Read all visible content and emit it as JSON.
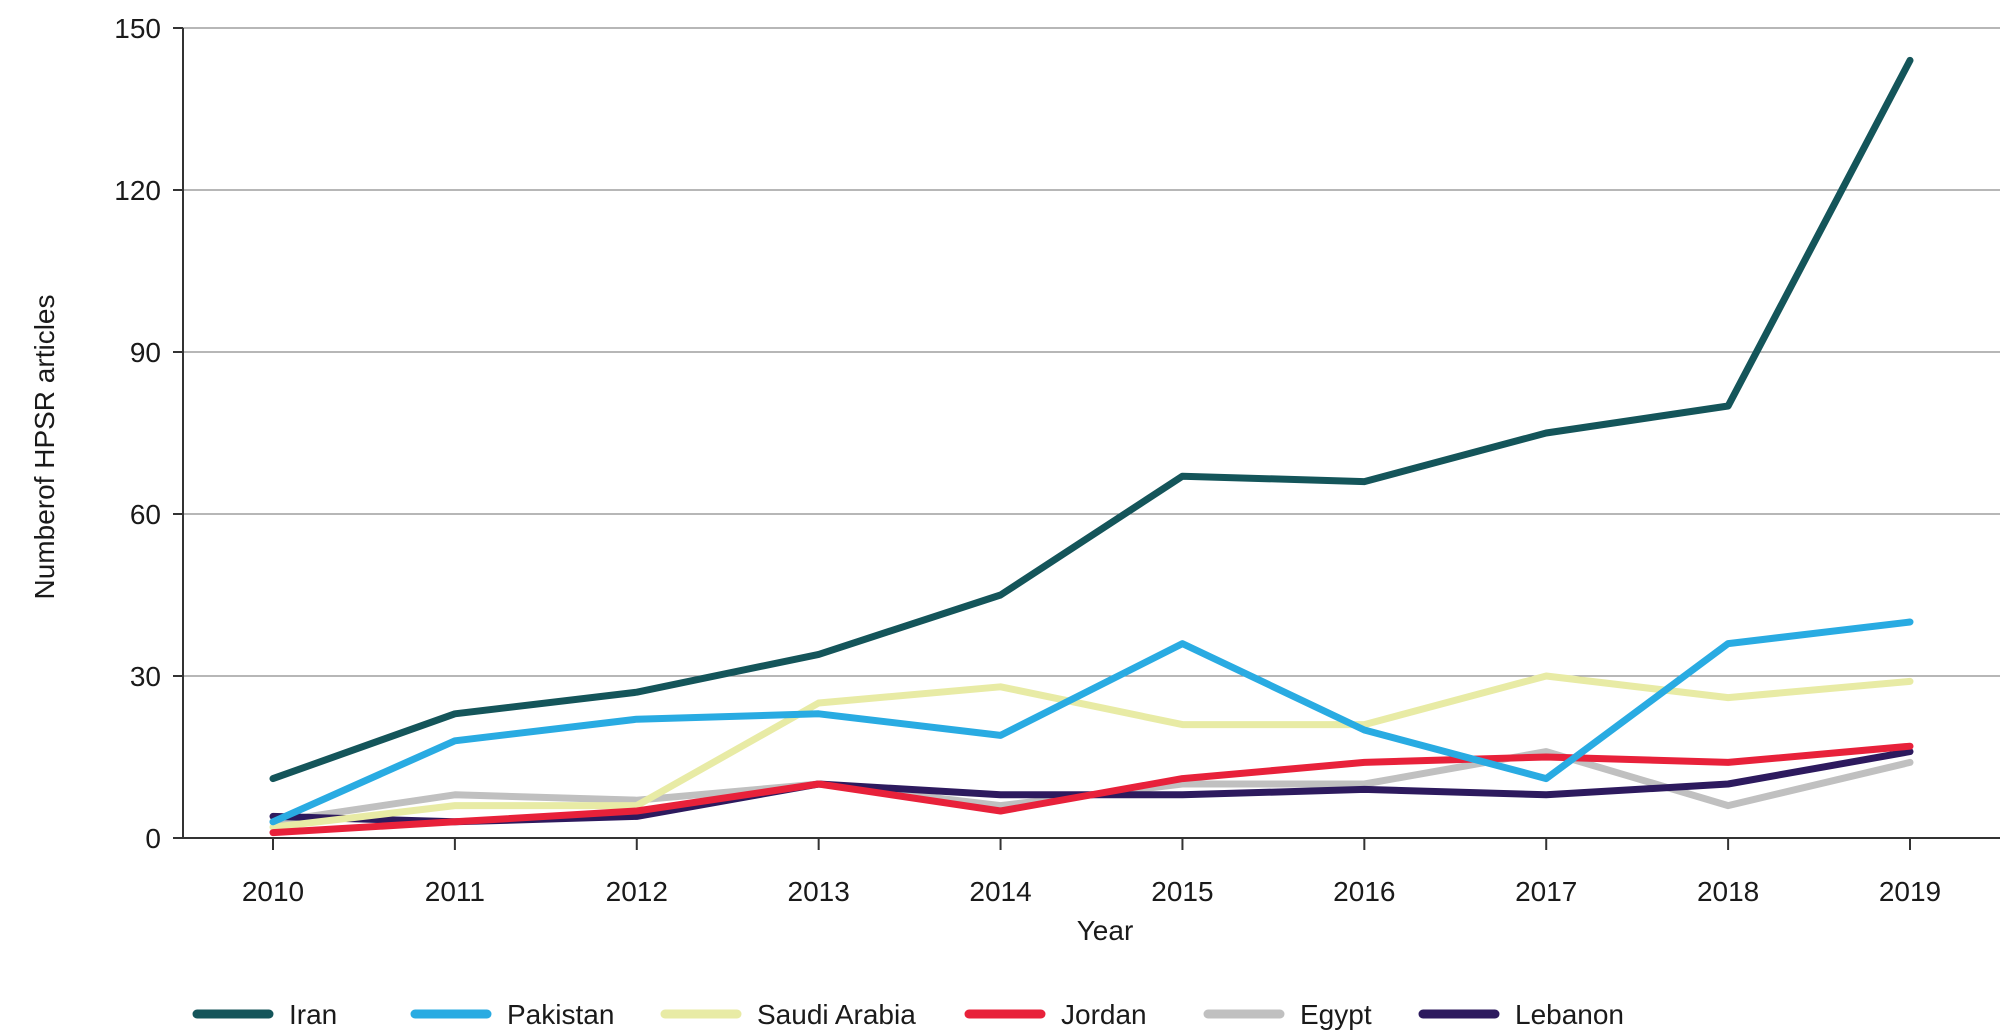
{
  "chart_data": {
    "type": "line",
    "title": "",
    "xlabel": "Year",
    "ylabel": "Numberof HPSR articles",
    "x": [
      "2010",
      "2011",
      "2012",
      "2013",
      "2014",
      "2015",
      "2016",
      "2017",
      "2018",
      "2019"
    ],
    "ylim": [
      0,
      150
    ],
    "yticks": [
      "0",
      "30",
      "60",
      "90",
      "120",
      "150"
    ],
    "grid": "horizontal",
    "legend_position": "bottom",
    "series": [
      {
        "name": "Iran",
        "color": "#14555a",
        "values": [
          11,
          23,
          27,
          34,
          45,
          67,
          66,
          75,
          80,
          144
        ]
      },
      {
        "name": "Pakistan",
        "color": "#29abe2",
        "values": [
          3,
          18,
          22,
          23,
          19,
          36,
          20,
          11,
          36,
          40
        ]
      },
      {
        "name": "Saudi Arabia",
        "color": "#e8eba5",
        "values": [
          2,
          6,
          6,
          25,
          28,
          21,
          21,
          30,
          26,
          29
        ]
      },
      {
        "name": "Jordan",
        "color": "#e8213a",
        "values": [
          1,
          3,
          5,
          10,
          5,
          11,
          14,
          15,
          14,
          17
        ]
      },
      {
        "name": "Egypt",
        "color": "#c0c0c0",
        "values": [
          3,
          8,
          7,
          10,
          6,
          10,
          10,
          16,
          6,
          14
        ]
      },
      {
        "name": "Lebanon",
        "color": "#2d1a5e",
        "values": [
          4,
          3,
          4,
          10,
          8,
          8,
          9,
          8,
          10,
          16
        ]
      }
    ]
  }
}
